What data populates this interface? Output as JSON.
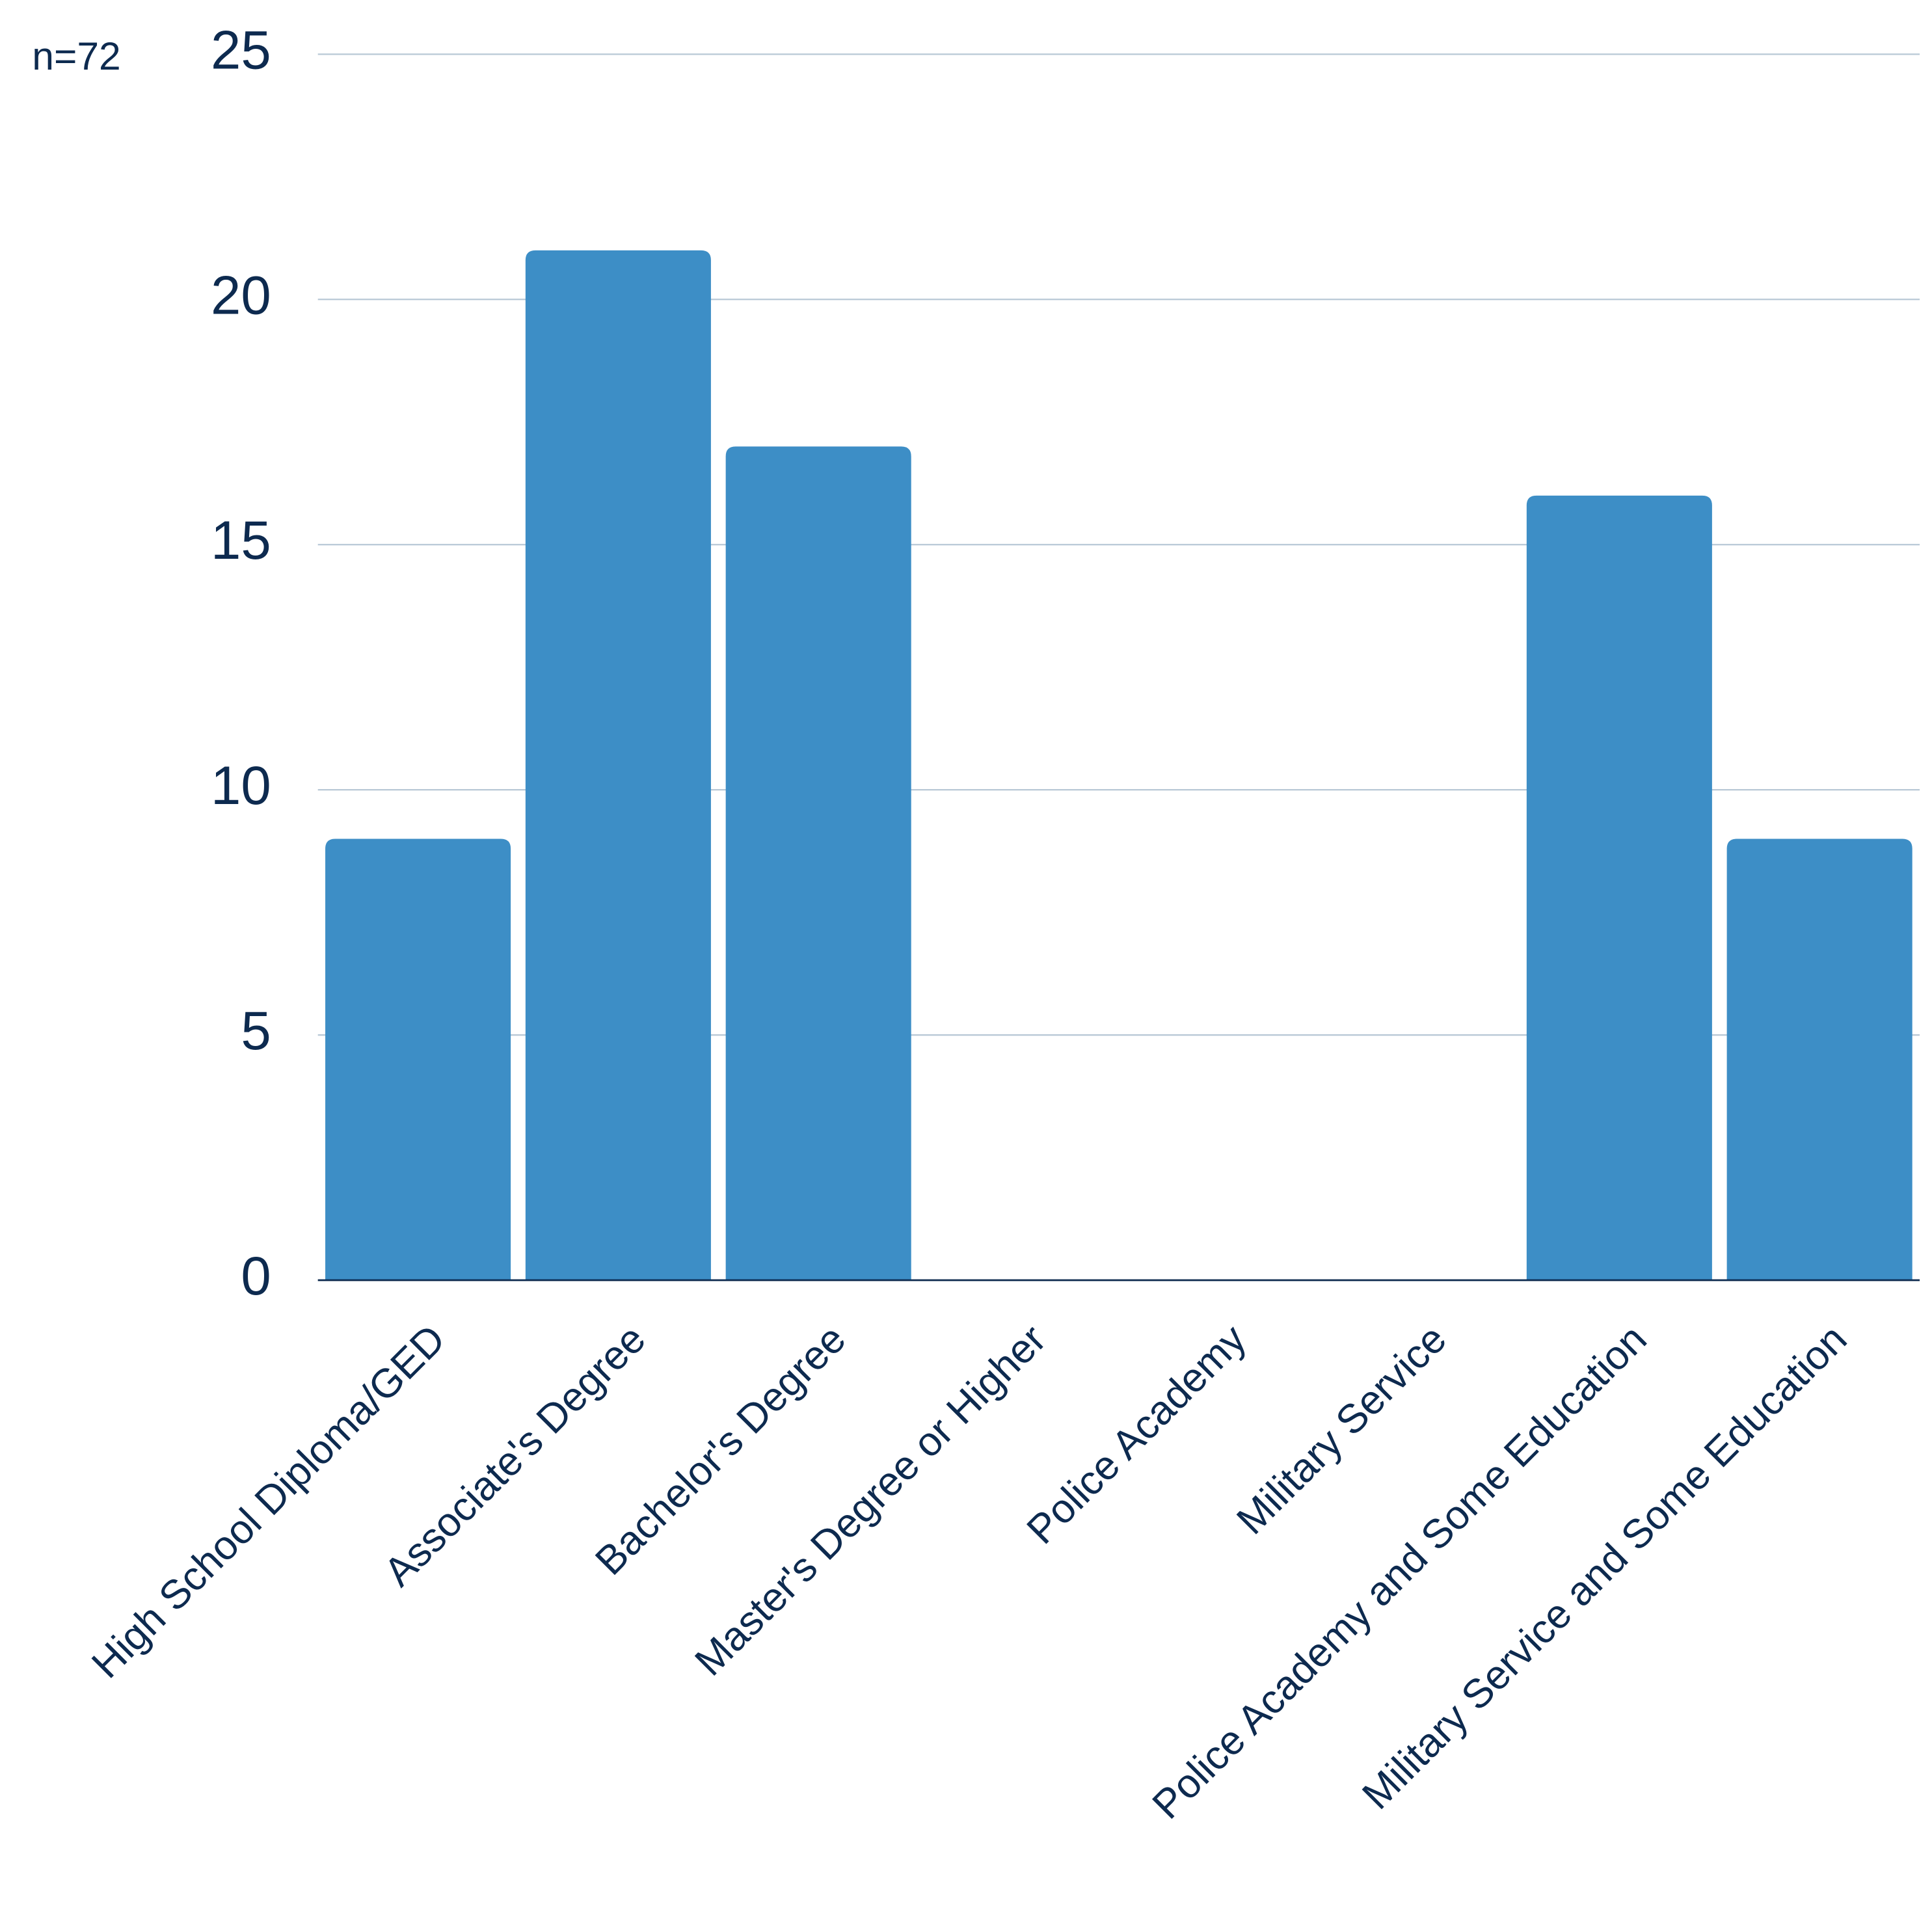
{
  "chart_data": {
    "type": "bar",
    "annotation": "n=72",
    "categories": [
      "High School Diploma/GED",
      "Associate's Degree",
      "Bachelor's Degree",
      "Master's Degree or Higher",
      "Police Academy",
      "Military Service",
      "Police Academy and Some Education",
      "Military Service and Some Education"
    ],
    "values": [
      9,
      21,
      17,
      0,
      0,
      0,
      16,
      9
    ],
    "color": "#3d8ec6",
    "ylim": [
      0,
      25
    ],
    "yticks": [
      0,
      5,
      10,
      15,
      20,
      25
    ],
    "grid": true
  }
}
